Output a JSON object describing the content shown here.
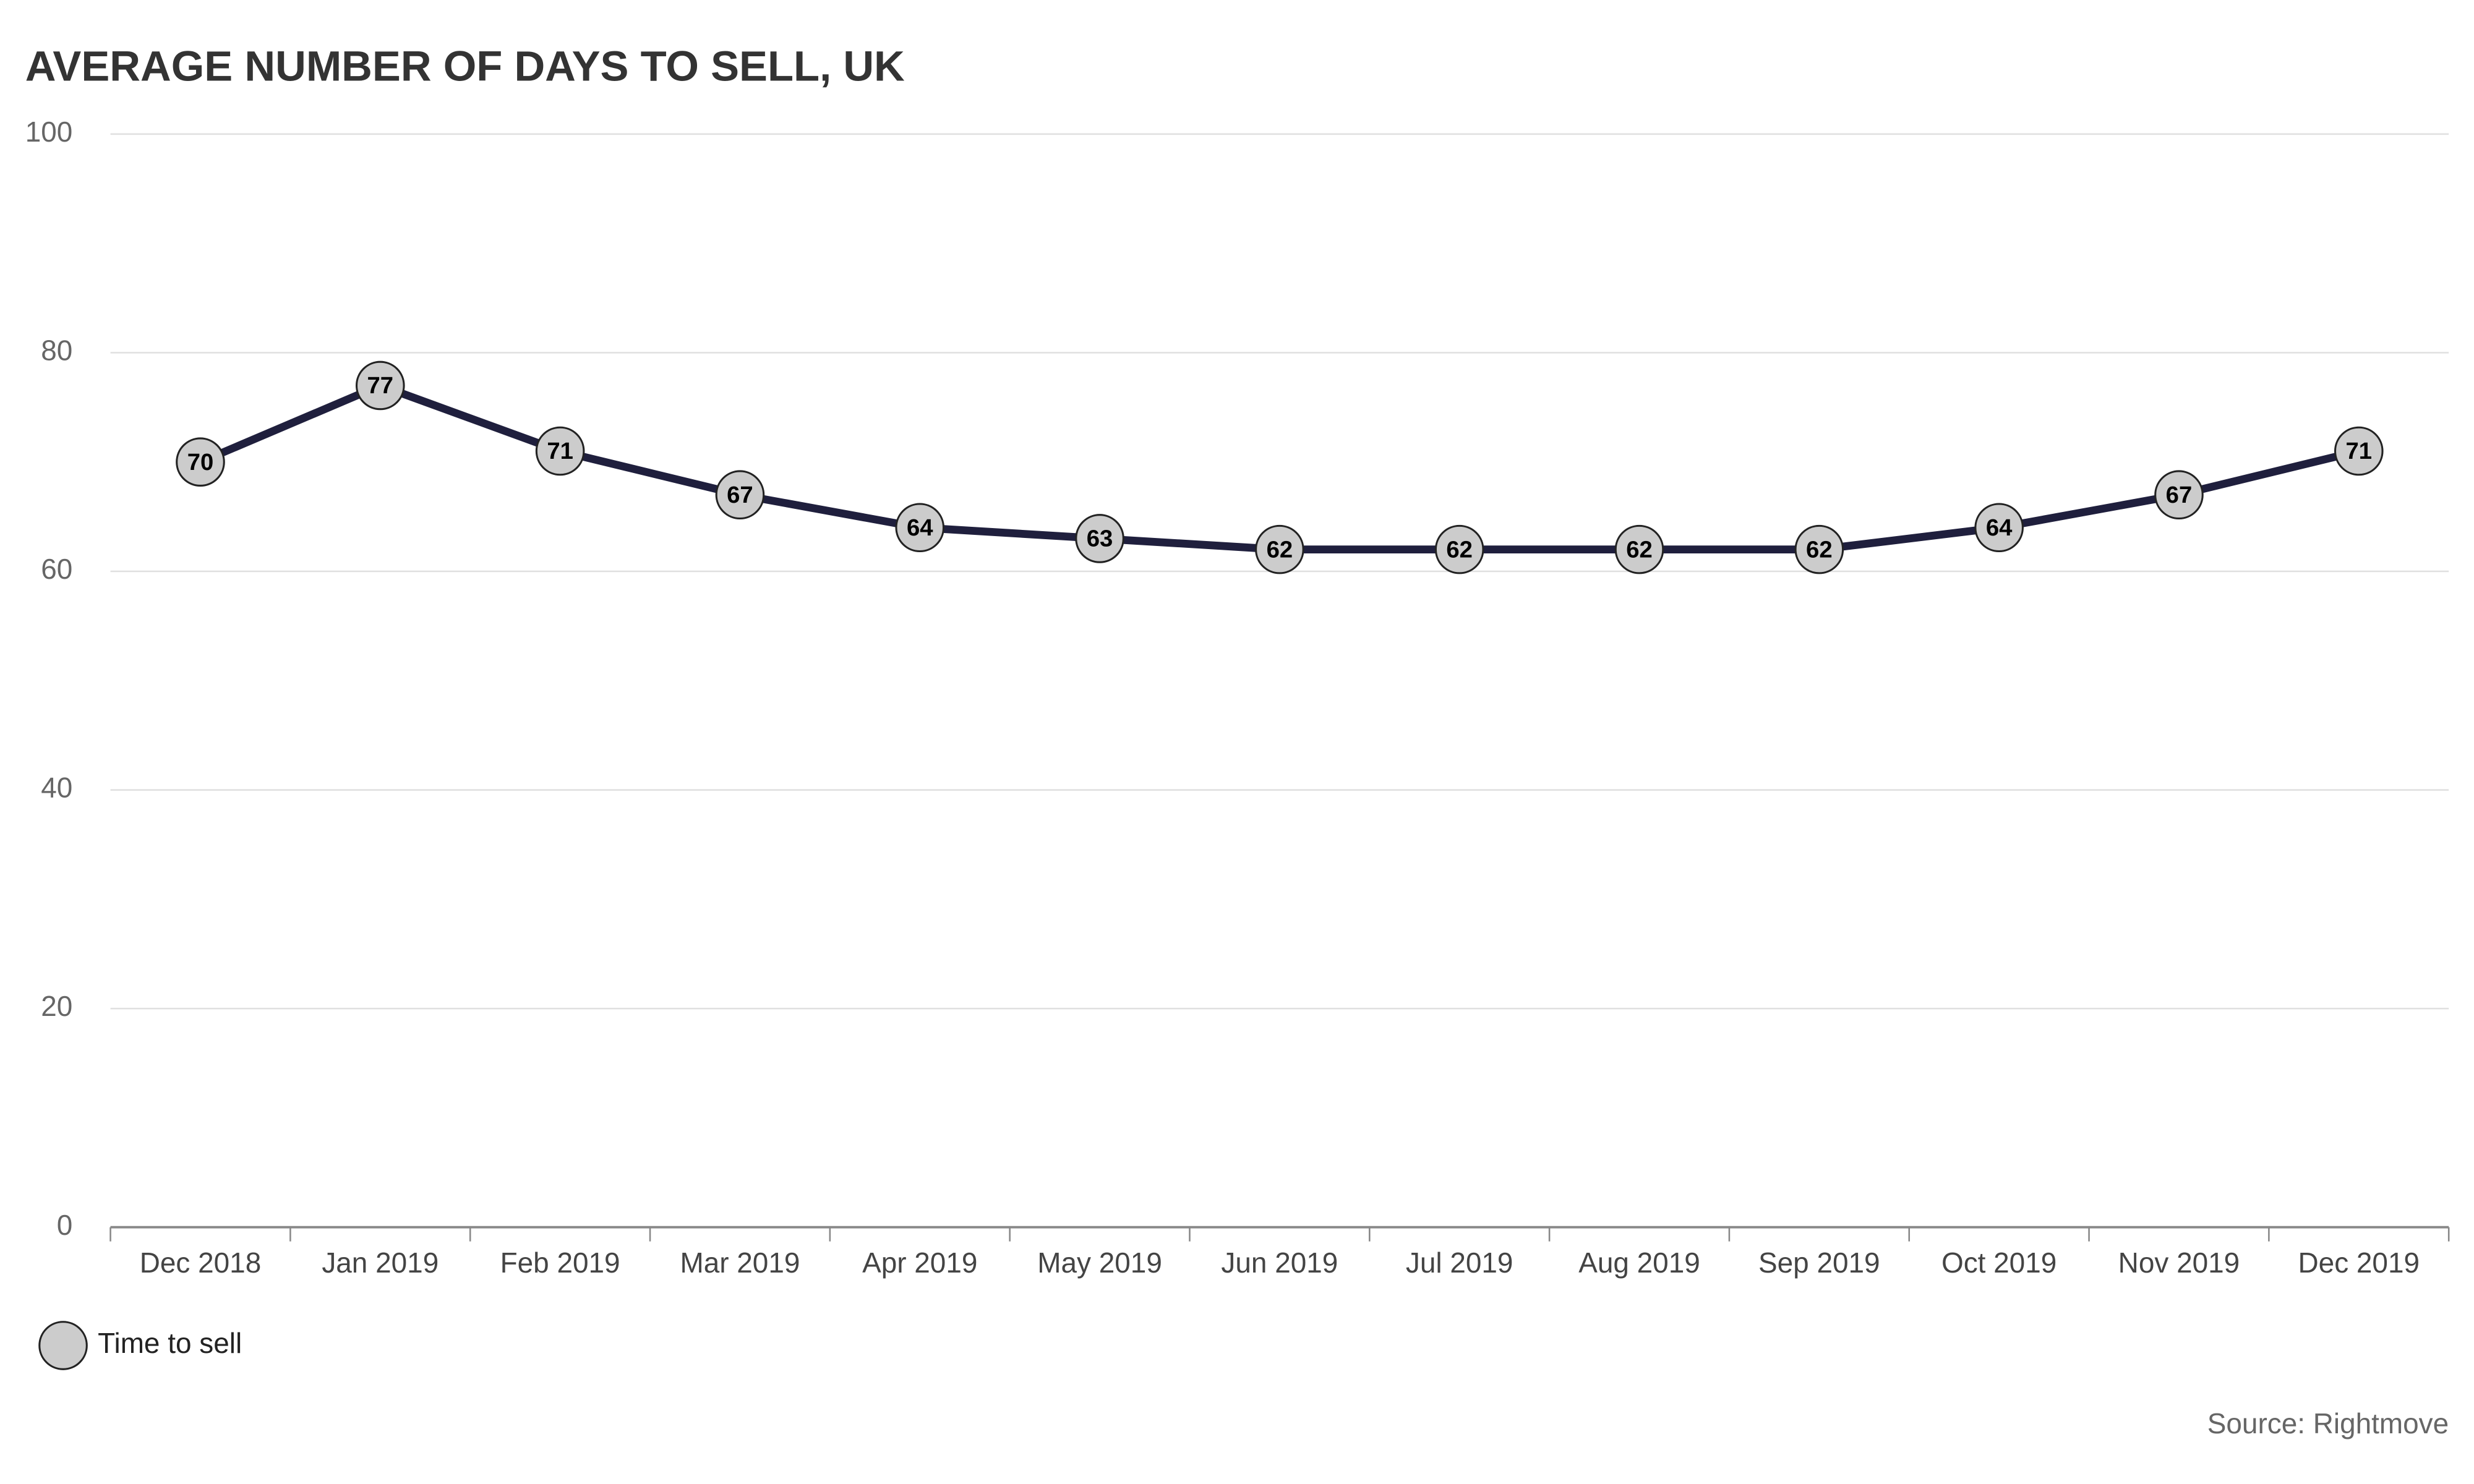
{
  "chart_data": {
    "type": "line",
    "title": "AVERAGE NUMBER OF DAYS TO SELL, UK",
    "categories": [
      "Dec 2018",
      "Jan 2019",
      "Feb 2019",
      "Mar 2019",
      "Apr 2019",
      "May 2019",
      "Jun 2019",
      "Jul 2019",
      "Aug 2019",
      "Sep 2019",
      "Oct 2019",
      "Nov 2019",
      "Dec 2019"
    ],
    "series": [
      {
        "name": "Time to sell",
        "color": "#1f1f3d",
        "marker_color": "#cccccc",
        "values": [
          70,
          77,
          71,
          67,
          64,
          63,
          62,
          62,
          62,
          62,
          64,
          67,
          71
        ]
      }
    ],
    "ylim": [
      0,
      100
    ],
    "yticks": [
      0,
      20,
      40,
      60,
      80,
      100
    ],
    "grid": true,
    "legend": "bottom-left",
    "source": "Source: Rightmove"
  }
}
